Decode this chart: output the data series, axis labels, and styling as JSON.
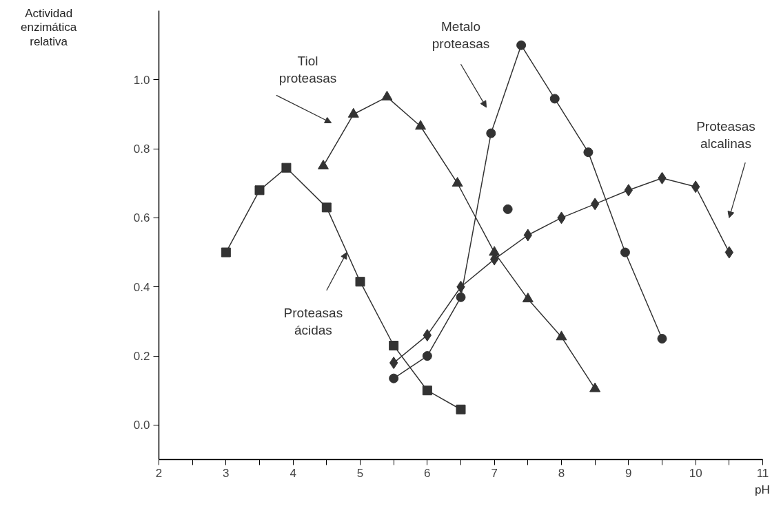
{
  "chart_data": {
    "type": "line",
    "ylabel": "Actividad\nenzimática\nrelativa",
    "xlabel": "pH",
    "xlim": [
      2,
      11
    ],
    "ylim": [
      -0.1,
      1.2
    ],
    "xticks": [
      2,
      {
        "value": 2.5,
        "label": null
      },
      3,
      {
        "value": 3.5,
        "label": null
      },
      4,
      {
        "value": 4.5,
        "label": null
      },
      5,
      {
        "value": 5.5,
        "label": null
      },
      6,
      {
        "value": 6.5,
        "label": null
      },
      7,
      {
        "value": 7.5,
        "label": null
      },
      8,
      {
        "value": 8.5,
        "label": null
      },
      9,
      {
        "value": 9.5,
        "label": null
      },
      10,
      {
        "value": 10.5,
        "label": null
      },
      11
    ],
    "yticks": [
      {
        "value": 0,
        "label": "0.0"
      },
      {
        "value": 0.2,
        "label": "0.2"
      },
      {
        "value": 0.4,
        "label": "0.4"
      },
      {
        "value": 0.6,
        "label": "0.6"
      },
      {
        "value": 0.8,
        "label": "0.8"
      },
      {
        "value": 1.0,
        "label": "1.0"
      }
    ],
    "grid": false,
    "line_style": "solid",
    "series": [
      {
        "name": "Proteasas\nácidas",
        "color": "#333333",
        "marker": "square",
        "x": [
          3.0,
          3.5,
          3.9,
          4.5,
          5.0,
          5.5,
          6.0,
          6.5
        ],
        "values": [
          0.5,
          0.68,
          0.745,
          0.63,
          0.415,
          0.23,
          0.1,
          0.045
        ]
      },
      {
        "name": "Tiol\nproteasas",
        "color": "#333333",
        "marker": "triangle",
        "x": [
          4.45,
          4.9,
          5.4,
          5.9,
          6.45,
          7.0,
          7.5,
          8.0,
          8.5
        ],
        "values": [
          0.75,
          0.9,
          0.95,
          0.865,
          0.7,
          0.5,
          0.365,
          0.255,
          0.105
        ]
      },
      {
        "name": "Metalo\nproteasas",
        "color": "#333333",
        "marker": "circle",
        "x": [
          5.5,
          6.0,
          6.5,
          6.95,
          7.4,
          7.9,
          8.4,
          8.95,
          9.5
        ],
        "values": [
          0.135,
          0.2,
          0.37,
          0.845,
          1.1,
          0.945,
          0.79,
          0.5,
          0.25
        ]
      },
      {
        "type": "scatter",
        "color": "#333333",
        "marker": "circle",
        "x": [
          7.2
        ],
        "values": [
          0.625
        ]
      },
      {
        "name": "Proteasas\nalcalinas",
        "color": "#333333",
        "marker": "diamond",
        "x": [
          5.5,
          6.0,
          6.5,
          7.0,
          7.5,
          8.0,
          8.5,
          9.0,
          9.5,
          10.0,
          10.5
        ],
        "values": [
          0.18,
          0.26,
          0.4,
          0.48,
          0.55,
          0.6,
          0.64,
          0.68,
          0.715,
          0.69,
          0.5
        ]
      }
    ]
  }
}
